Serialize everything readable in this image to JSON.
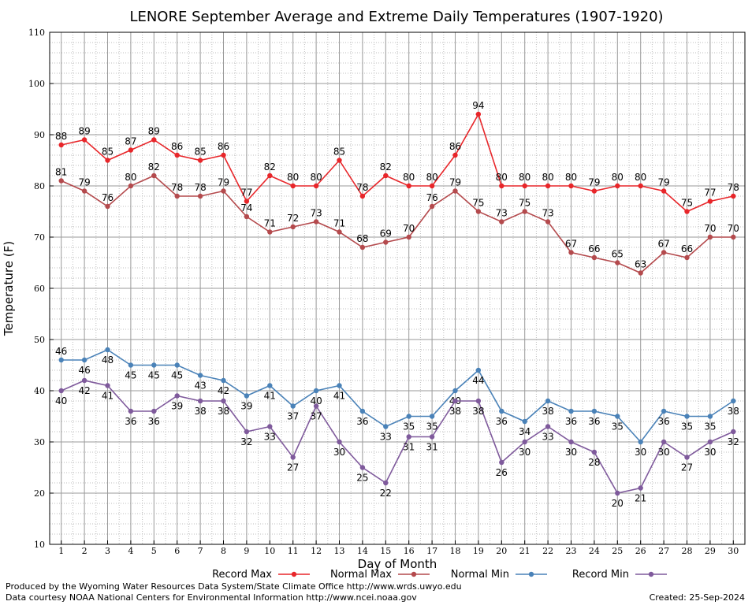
{
  "footer": {
    "produced_by": "Produced by the Wyoming Water Resources Data System/State Climate Office http://www.wrds.uwyo.edu",
    "courtesy": "Data courtesy NOAA National Centers for Environmental Information http://www.ncei.noaa.gov",
    "created": "Created: 25-Sep-2024"
  },
  "chart_data": {
    "type": "line",
    "title": "LENORE September Average and Extreme Daily Temperatures (1907-1920)",
    "xlabel": "Day of Month",
    "ylabel": "Temperature (F)",
    "ylim": [
      10,
      110
    ],
    "yticks": [
      10,
      20,
      30,
      40,
      50,
      60,
      70,
      80,
      90,
      100,
      110
    ],
    "x": [
      1,
      2,
      3,
      4,
      5,
      6,
      7,
      8,
      9,
      10,
      11,
      12,
      13,
      14,
      15,
      16,
      17,
      18,
      19,
      20,
      21,
      22,
      23,
      24,
      25,
      26,
      27,
      28,
      29,
      30
    ],
    "grid": true,
    "legend_position": "bottom",
    "series": [
      {
        "name": "Record Max",
        "color": "#e8262a",
        "label_pos": "above",
        "values": [
          88,
          89,
          85,
          87,
          89,
          86,
          85,
          86,
          77,
          82,
          80,
          80,
          85,
          78,
          82,
          80,
          80,
          86,
          94,
          80,
          80,
          80,
          80,
          79,
          80,
          80,
          79,
          75,
          77,
          78
        ]
      },
      {
        "name": "Normal Max",
        "color": "#b44a4d",
        "label_pos": "above",
        "values": [
          81,
          79,
          76,
          80,
          82,
          78,
          78,
          79,
          74,
          71,
          72,
          73,
          71,
          68,
          69,
          70,
          76,
          79,
          75,
          73,
          75,
          73,
          67,
          66,
          65,
          63,
          67,
          66,
          70,
          70
        ]
      },
      {
        "name": "Normal Min",
        "color": "#4a82b8",
        "label_pos": "above_first_below_rest",
        "values": [
          46,
          46,
          48,
          45,
          45,
          45,
          43,
          42,
          39,
          41,
          37,
          40,
          41,
          36,
          33,
          35,
          35,
          40,
          44,
          36,
          34,
          38,
          36,
          36,
          35,
          30,
          36,
          35,
          35,
          38
        ]
      },
      {
        "name": "Record Min",
        "color": "#7f5a9c",
        "label_pos": "below",
        "values": [
          40,
          42,
          41,
          36,
          36,
          39,
          38,
          38,
          32,
          33,
          27,
          37,
          30,
          25,
          22,
          31,
          31,
          38,
          38,
          26,
          30,
          33,
          30,
          28,
          20,
          21,
          30,
          27,
          30,
          32
        ]
      }
    ]
  }
}
